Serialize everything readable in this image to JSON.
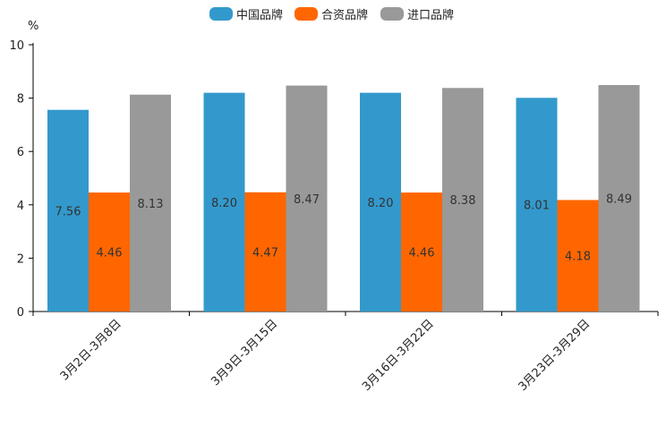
{
  "chart_data": {
    "type": "bar",
    "title": "",
    "ylabel": "%",
    "xlabel": "",
    "ylim": [
      0,
      10
    ],
    "yticks": [
      0,
      2,
      4,
      6,
      8,
      10
    ],
    "grid": false,
    "legend_position": "top-center",
    "categories": [
      "3月2日-3月8日",
      "3月9日-3月15日",
      "3月16日-3月22日",
      "3月23日-3月29日"
    ],
    "series": [
      {
        "name": "中国品牌",
        "color": "#3399cc",
        "values": [
          7.56,
          8.2,
          8.2,
          8.01
        ],
        "labels": [
          "7.56",
          "8.20",
          "8.20",
          "8.01"
        ]
      },
      {
        "name": "合资品牌",
        "color": "#ff6600",
        "values": [
          4.46,
          4.47,
          4.46,
          4.18
        ],
        "labels": [
          "4.46",
          "4.47",
          "4.46",
          "4.18"
        ]
      },
      {
        "name": "进口品牌",
        "color": "#999999",
        "values": [
          8.13,
          8.47,
          8.38,
          8.49
        ],
        "labels": [
          "8.13",
          "8.47",
          "8.38",
          "8.49"
        ]
      }
    ]
  }
}
